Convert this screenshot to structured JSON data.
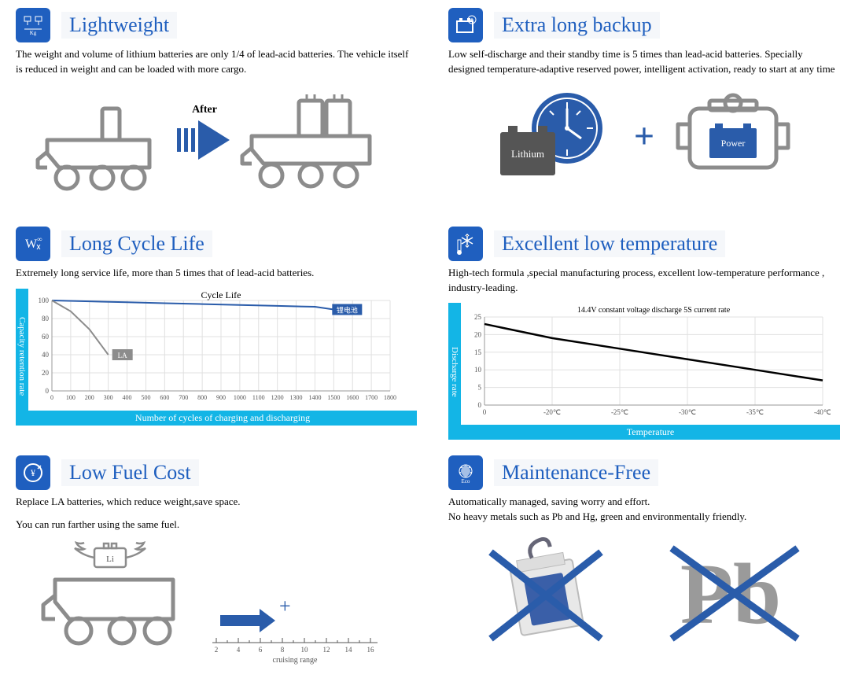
{
  "colors": {
    "brand": "#1f5fbf",
    "cyan": "#13b5e6",
    "gray": "#8c8c8c",
    "dark": "#555"
  },
  "panels": {
    "lightweight": {
      "title": "Lightweight",
      "desc": "The weight and volume of lithium batteries are only 1/4 of lead-acid batteries. The vehicle itself is reduced in weight and can be loaded with more cargo.",
      "after_label": "After"
    },
    "backup": {
      "title": "Extra long backup",
      "desc": "Low self-discharge and their standby time is 5 times than lead-acid batteries. Specially designed temperature-adaptive reserved power, intelligent activation, ready to start at any time",
      "lithium_label": "Lithium",
      "power_label": "Power"
    },
    "cycle": {
      "title": "Long Cycle Life",
      "desc": "Extremely long service life, more than 5 times that of lead-acid batteries.",
      "chart": {
        "type": "line",
        "title": "Cycle Life",
        "ylabel": "Capacity retention rate",
        "xlabel": "Number of cycles of charging and discharging",
        "ylim": [
          0,
          100
        ],
        "ytick_step": 20,
        "xlim": [
          0,
          1800
        ],
        "xtick_step": 100,
        "la_label": "LA",
        "li_label": "锂电池",
        "li_color": "#2a5caa",
        "la_color": "#8c8c8c",
        "grid_color": "#e0e0e0",
        "li_series": [
          [
            0,
            100
          ],
          [
            200,
            99
          ],
          [
            400,
            98
          ],
          [
            600,
            97
          ],
          [
            800,
            96
          ],
          [
            1000,
            95
          ],
          [
            1200,
            94
          ],
          [
            1400,
            93
          ],
          [
            1500,
            90
          ]
        ],
        "la_series": [
          [
            0,
            100
          ],
          [
            100,
            88
          ],
          [
            200,
            68
          ],
          [
            300,
            40
          ]
        ]
      }
    },
    "lowtemp": {
      "title": "Excellent low temperature",
      "desc": "High-tech formula ,special manufacturing process,  excellent low-temperature performance , industry-leading.",
      "chart": {
        "type": "line",
        "title": "14.4V constant voltage discharge 5S current rate",
        "ylabel": "Discharge rate",
        "xlabel": "Temperature",
        "ylim": [
          0,
          25
        ],
        "yticks": [
          0,
          5,
          10,
          15,
          20,
          25
        ],
        "xticks": [
          "0",
          "-20℃",
          "-25℃",
          "-30℃",
          "-35℃",
          "-40℃"
        ],
        "series": [
          [
            0,
            23
          ],
          [
            1,
            19
          ],
          [
            2,
            16
          ],
          [
            3,
            13
          ],
          [
            4,
            10
          ],
          [
            5,
            7
          ]
        ],
        "line_color": "#000",
        "grid_color": "#e0e0e0"
      }
    },
    "fuel": {
      "title": "Low Fuel Cost",
      "desc1": "Replace LA batteries, which reduce weight,save space.",
      "desc2": "You can run farther using the same fuel.",
      "li_label": "Li",
      "range_label": "cruising range",
      "ticks": [
        2,
        4,
        6,
        8,
        10,
        12,
        14,
        16
      ]
    },
    "maint": {
      "title": "Maintenance-Free",
      "desc": "Automatically managed, saving worry and effort.\nNo heavy metals such as Pb and Hg, green and environmentally friendly.",
      "pb_label": "Pb",
      "eco_label": "Eco"
    }
  }
}
